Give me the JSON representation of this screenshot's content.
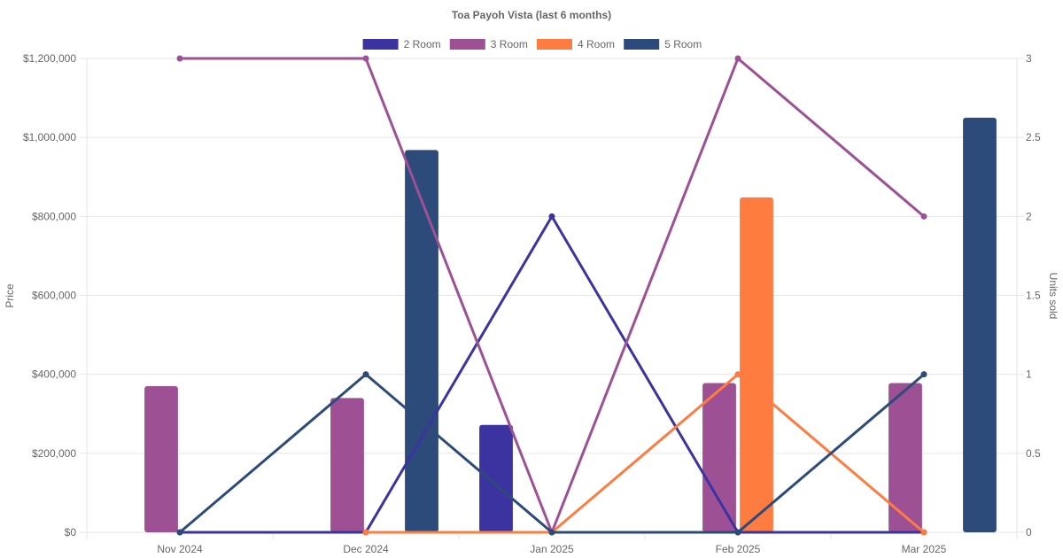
{
  "chart_data": {
    "type": "bar",
    "title": "Toa Payoh Vista (last 6 months)",
    "categories": [
      "Nov 2024",
      "Dec 2024",
      "Jan 2025",
      "Feb 2025",
      "Mar 2025"
    ],
    "y_left": {
      "label": "Price",
      "min": 0,
      "max": 1200000,
      "ticks": [
        {
          "value": 0,
          "label": "$0"
        },
        {
          "value": 200000,
          "label": "$200,000"
        },
        {
          "value": 400000,
          "label": "$400,000"
        },
        {
          "value": 600000,
          "label": "$600,000"
        },
        {
          "value": 800000,
          "label": "$800,000"
        },
        {
          "value": 1000000,
          "label": "$1,000,000"
        },
        {
          "value": 1200000,
          "label": "$1,200,000"
        }
      ]
    },
    "y_right": {
      "label": "Units sold",
      "min": 0,
      "max": 3,
      "ticks": [
        {
          "value": 0,
          "label": "0"
        },
        {
          "value": 0.5,
          "label": "0.5"
        },
        {
          "value": 1,
          "label": "1"
        },
        {
          "value": 1.5,
          "label": "1.5"
        },
        {
          "value": 2,
          "label": "2"
        },
        {
          "value": 2.5,
          "label": "2.5"
        },
        {
          "value": 3,
          "label": "3"
        }
      ]
    },
    "grid": true,
    "legend_position": "top",
    "series": [
      {
        "name": "2 Room",
        "color": "#3a33a0",
        "price": [
          null,
          null,
          272000,
          null,
          null
        ],
        "units": [
          0,
          0,
          2,
          0,
          0
        ]
      },
      {
        "name": "3 Room",
        "color": "#9e5095",
        "price": [
          370000,
          340000,
          null,
          378000,
          378000
        ],
        "units": [
          3,
          3,
          0,
          3,
          2
        ]
      },
      {
        "name": "4 Room",
        "color": "#fe7c3f",
        "price": [
          null,
          null,
          null,
          848000,
          null
        ],
        "units": [
          null,
          0,
          0,
          1,
          0
        ]
      },
      {
        "name": "5 Room",
        "color": "#2d4b7a",
        "price": [
          null,
          968000,
          null,
          null,
          1050000
        ],
        "units": [
          0,
          1,
          0,
          0,
          1
        ]
      }
    ]
  }
}
